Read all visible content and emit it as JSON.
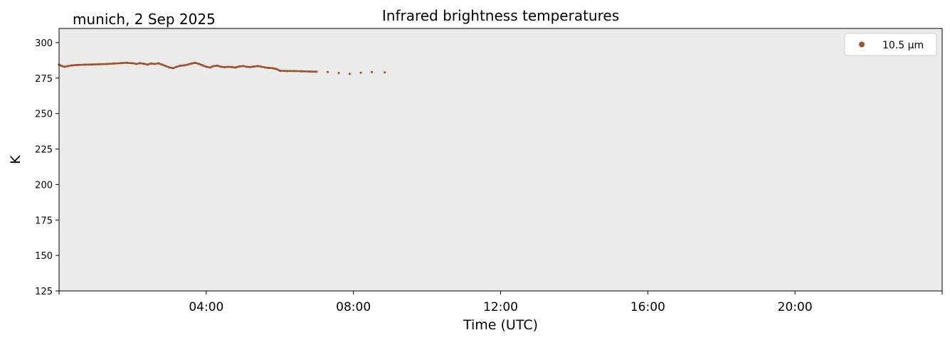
{
  "chart_data": {
    "type": "scatter",
    "title": "Infrared brightness temperatures",
    "subtitle": "munich, 2 Sep 2025",
    "xlabel": "Time (UTC)",
    "ylabel": "K",
    "x_unit": "hours UTC",
    "xlim": [
      0,
      24
    ],
    "ylim": [
      125,
      310
    ],
    "yticks": [
      125,
      150,
      175,
      200,
      225,
      250,
      275,
      300
    ],
    "xtick_labels": [
      {
        "x": 4,
        "label": "04:00"
      },
      {
        "x": 8,
        "label": "08:00"
      },
      {
        "x": 12,
        "label": "12:00"
      },
      {
        "x": 16,
        "label": "16:00"
      },
      {
        "x": 20,
        "label": "20:00"
      }
    ],
    "xtick_minor": [
      0,
      24
    ],
    "grid": false,
    "background": "#ebebeb",
    "legend_position": "upper-right",
    "series": [
      {
        "name": "10.5 µm",
        "color": "#a0522d",
        "marker": "dot",
        "points": [
          [
            0.0,
            284.5
          ],
          [
            0.08,
            283.5
          ],
          [
            0.15,
            283.0
          ],
          [
            0.25,
            283.5
          ],
          [
            0.35,
            284.0
          ],
          [
            0.5,
            284.3
          ],
          [
            0.7,
            284.5
          ],
          [
            0.9,
            284.6
          ],
          [
            1.1,
            284.8
          ],
          [
            1.3,
            285.0
          ],
          [
            1.5,
            285.3
          ],
          [
            1.7,
            285.6
          ],
          [
            1.85,
            285.8
          ],
          [
            2.0,
            285.5
          ],
          [
            2.1,
            285.0
          ],
          [
            2.2,
            285.5
          ],
          [
            2.3,
            285.2
          ],
          [
            2.4,
            284.5
          ],
          [
            2.5,
            285.3
          ],
          [
            2.6,
            285.0
          ],
          [
            2.7,
            285.4
          ],
          [
            2.8,
            284.5
          ],
          [
            2.9,
            283.5
          ],
          [
            3.0,
            282.5
          ],
          [
            3.1,
            282.0
          ],
          [
            3.2,
            283.0
          ],
          [
            3.3,
            283.8
          ],
          [
            3.4,
            284.0
          ],
          [
            3.5,
            284.5
          ],
          [
            3.6,
            285.3
          ],
          [
            3.7,
            285.8
          ],
          [
            3.8,
            285.0
          ],
          [
            3.9,
            284.0
          ],
          [
            4.0,
            283.0
          ],
          [
            4.1,
            282.5
          ],
          [
            4.2,
            283.5
          ],
          [
            4.3,
            283.8
          ],
          [
            4.4,
            283.0
          ],
          [
            4.5,
            282.7
          ],
          [
            4.6,
            283.0
          ],
          [
            4.7,
            282.8
          ],
          [
            4.8,
            282.5
          ],
          [
            4.9,
            283.3
          ],
          [
            5.0,
            283.5
          ],
          [
            5.1,
            283.0
          ],
          [
            5.2,
            282.8
          ],
          [
            5.3,
            283.2
          ],
          [
            5.4,
            283.5
          ],
          [
            5.5,
            283.0
          ],
          [
            5.6,
            282.5
          ],
          [
            5.7,
            282.2
          ],
          [
            5.8,
            282.0
          ],
          [
            5.9,
            281.5
          ],
          [
            6.0,
            280.2
          ],
          [
            6.2,
            280.0
          ],
          [
            6.4,
            280.0
          ],
          [
            6.6,
            279.8
          ],
          [
            6.8,
            279.6
          ],
          [
            7.0,
            279.5
          ],
          [
            7.3,
            279.3
          ],
          [
            7.6,
            278.6
          ],
          [
            7.9,
            278.0
          ],
          [
            8.2,
            278.8
          ],
          [
            8.5,
            279.2
          ],
          [
            8.85,
            279.0
          ]
        ]
      }
    ]
  }
}
